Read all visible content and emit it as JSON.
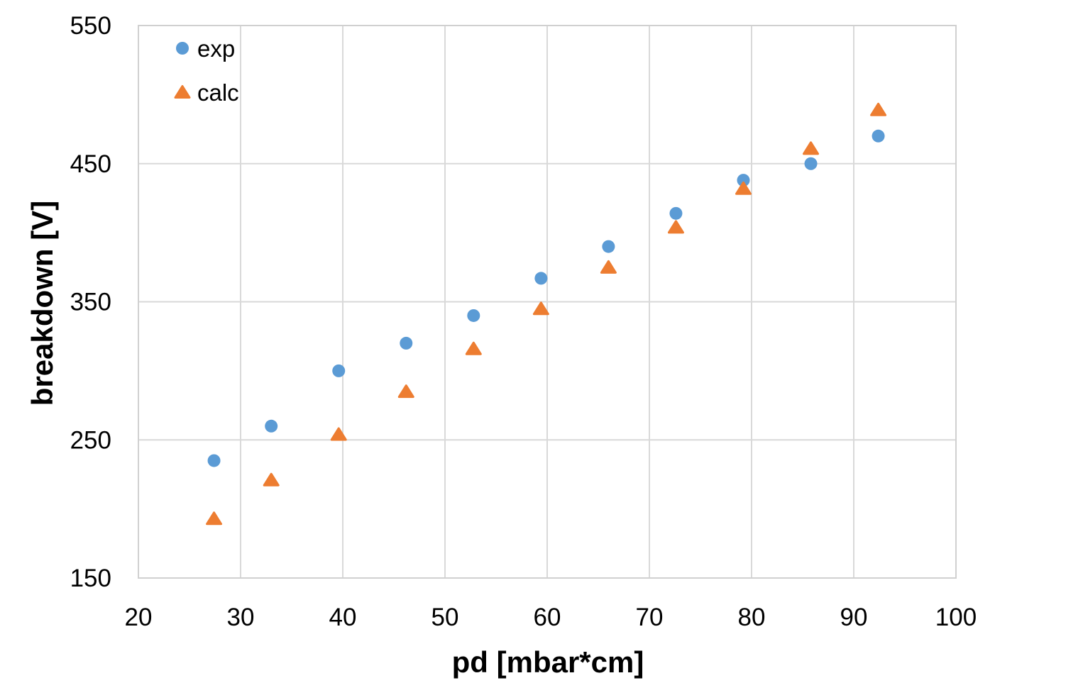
{
  "chart_data": {
    "type": "scatter",
    "xlabel": "pd [mbar*cm]",
    "ylabel": "breakdown [V]",
    "xlim": [
      20,
      100
    ],
    "ylim": [
      150,
      550
    ],
    "xticks": [
      20,
      30,
      40,
      50,
      60,
      70,
      80,
      90,
      100
    ],
    "yticks": [
      150,
      250,
      350,
      450,
      550
    ],
    "xtick_labels": [
      "20",
      "30",
      "40",
      "50",
      "60",
      "70",
      "80",
      "90",
      "100"
    ],
    "ytick_labels": [
      "150",
      "250",
      "350",
      "450",
      "550"
    ],
    "grid": true,
    "legend_position": "top-left",
    "series": [
      {
        "name": "exp",
        "marker": "circle",
        "color": "#5b9bd5",
        "x": [
          27.4,
          33.0,
          39.6,
          46.2,
          52.8,
          59.4,
          66.0,
          72.6,
          79.2,
          85.8,
          92.4
        ],
        "y": [
          235,
          260,
          300,
          320,
          340,
          367,
          390,
          414,
          438,
          450,
          470
        ]
      },
      {
        "name": "calc",
        "marker": "triangle",
        "color": "#ed7d31",
        "x": [
          27.4,
          33.0,
          39.6,
          46.2,
          52.8,
          59.4,
          66.0,
          72.6,
          79.2,
          85.8,
          92.4
        ],
        "y": [
          193,
          221,
          254,
          285,
          316,
          345,
          375,
          404,
          432,
          461,
          489
        ]
      }
    ]
  }
}
